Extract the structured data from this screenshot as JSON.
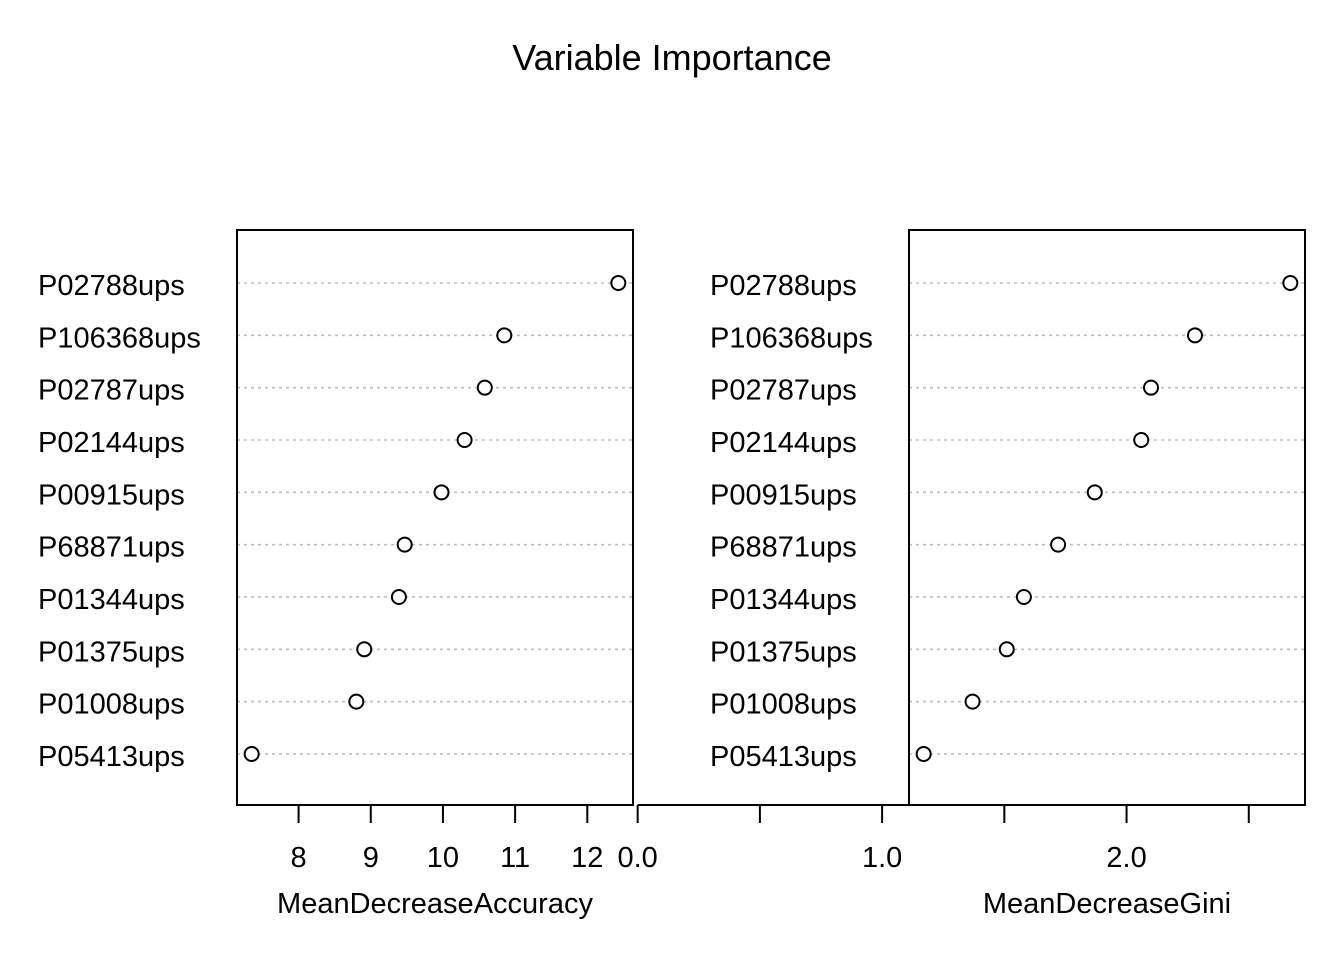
{
  "chart_data": {
    "title": "Variable Importance",
    "type": "dotchart",
    "variables": [
      "P02788ups",
      "P106368ups",
      "P02787ups",
      "P02144ups",
      "P00915ups",
      "P68871ups",
      "P01344ups",
      "P01375ups",
      "P01008ups",
      "P05413ups"
    ],
    "panels": [
      {
        "xlabel": "MeanDecreaseAccuracy",
        "xlim": [
          7.35,
          12.43
        ],
        "ticks": [
          8,
          9,
          10,
          11,
          12
        ],
        "tick_labels": [
          "8",
          "9",
          "10",
          "11",
          "12"
        ],
        "values": [
          12.43,
          10.85,
          10.58,
          10.3,
          9.98,
          9.47,
          9.39,
          8.91,
          8.8,
          7.35
        ]
      },
      {
        "xlabel": "MeanDecreaseGini",
        "xlim": [
          1.17,
          2.67
        ],
        "ticks": [
          0.0,
          0.5,
          1.0,
          1.5,
          2.0,
          2.5
        ],
        "tick_labels": [
          "0.0",
          "",
          "1.0",
          "",
          "2.0",
          ""
        ],
        "values": [
          2.67,
          2.28,
          2.1,
          2.06,
          1.87,
          1.72,
          1.58,
          1.51,
          1.37,
          1.17
        ]
      }
    ],
    "grid": "dotted",
    "marker": "open-circle"
  }
}
